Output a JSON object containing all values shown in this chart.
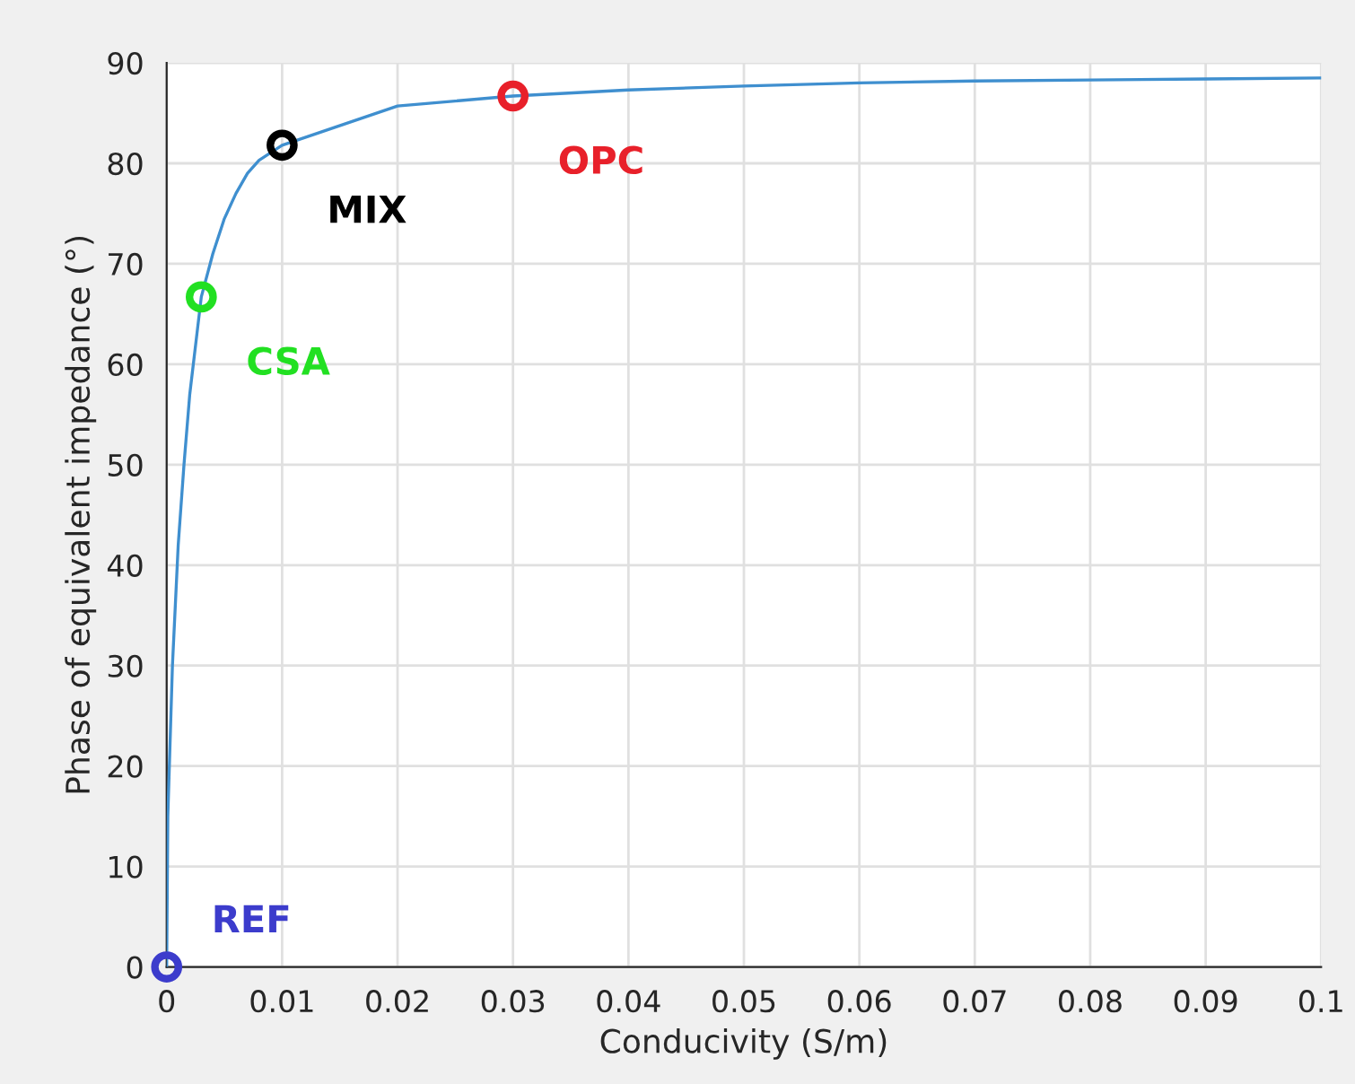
{
  "chart_data": {
    "type": "line",
    "xlabel": "Conducivity (S/m)",
    "ylabel": "Phase of equivalent impedance (°)",
    "xlim": [
      0,
      0.1
    ],
    "xticks": [
      0,
      0.01,
      0.02,
      0.03,
      0.04,
      0.05,
      0.06,
      0.07,
      0.08,
      0.09,
      0.1
    ],
    "ylim": [
      0,
      90
    ],
    "yticks": [
      0,
      10,
      20,
      30,
      40,
      50,
      60,
      70,
      80,
      90
    ],
    "grid": true,
    "legend": false,
    "series": [
      {
        "color": "#3f8fcf",
        "marker": "none",
        "x": [
          0,
          0.0001,
          0.0005,
          0.001,
          0.0015,
          0.002,
          0.003,
          0.004,
          0.005,
          0.006,
          0.007,
          0.008,
          0.01,
          0.02,
          0.03,
          0.04,
          0.05,
          0.06,
          0.07,
          0.08,
          0.09,
          0.1
        ],
        "values": [
          0,
          15,
          30,
          42,
          50,
          57,
          66.7,
          71,
          74.5,
          77,
          79,
          80.3,
          81.8,
          85.7,
          86.7,
          87.3,
          87.7,
          88,
          88.2,
          88.3,
          88.4,
          88.5
        ]
      },
      {
        "type": "scatter",
        "name": "REF",
        "color": "#3c3ccc",
        "marker": "circle",
        "x": [
          0
        ],
        "values": [
          0
        ]
      },
      {
        "type": "scatter",
        "name": "CSA",
        "color": "#22e022",
        "marker": "circle",
        "x": [
          0.003
        ],
        "values": [
          66.7
        ]
      },
      {
        "type": "scatter",
        "name": "MIX",
        "color": "#000000",
        "marker": "circle",
        "x": [
          0.01
        ],
        "values": [
          81.8
        ]
      },
      {
        "type": "scatter",
        "name": "OPC",
        "color": "#e8202a",
        "marker": "circle",
        "x": [
          0.03
        ],
        "values": [
          86.7
        ]
      }
    ]
  }
}
